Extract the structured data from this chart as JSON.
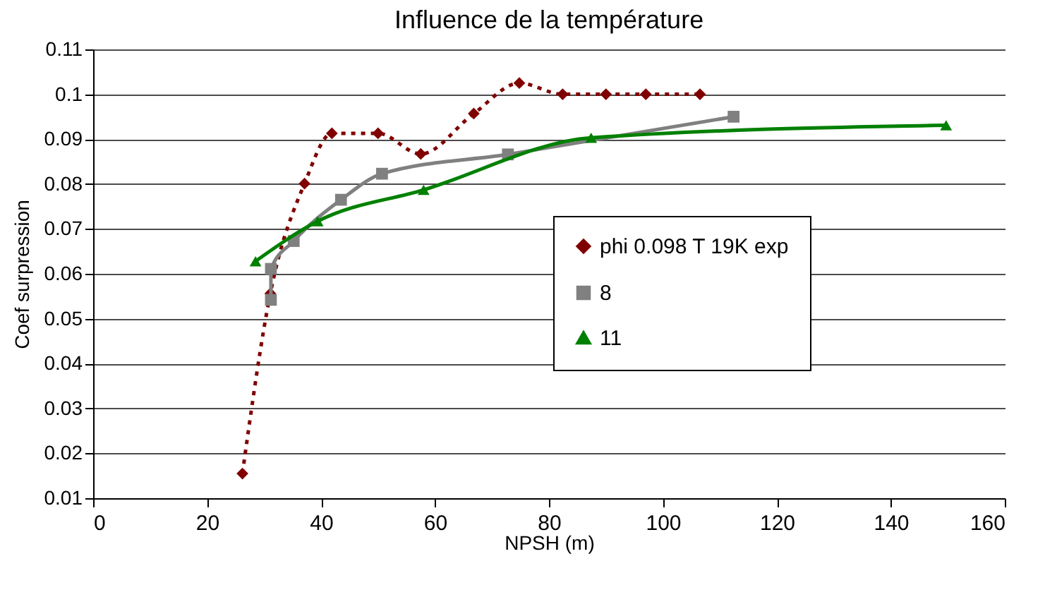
{
  "chart_data": {
    "type": "line",
    "title": "Influence de la température",
    "xlabel": "NPSH (m)",
    "ylabel": "Coef surpression",
    "xlim": [
      0,
      160
    ],
    "xticks": [
      0,
      20,
      40,
      60,
      80,
      100,
      120,
      140,
      160
    ],
    "ylim": [
      0.01,
      0.11
    ],
    "yticks": [
      0.01,
      0.02,
      0.03,
      0.04,
      0.05,
      0.06,
      0.07,
      0.08,
      0.09,
      0.1,
      0.11
    ],
    "grid": "y",
    "legend": "right",
    "series": [
      {
        "name": "phi 0.098 T 19K exp",
        "color": "#800000",
        "marker": "diamond",
        "line_style": "dotted",
        "x": [
          26.2,
          31.1,
          37.1,
          41.9,
          50.0,
          57.5,
          66.8,
          74.8,
          82.4,
          90.0,
          97.0,
          106.5
        ],
        "values": [
          0.0155,
          0.0556,
          0.0801,
          0.0913,
          0.0913,
          0.0867,
          0.0957,
          0.1025,
          0.1,
          0.1,
          0.1,
          0.1
        ]
      },
      {
        "name": "8",
        "color": "#808080",
        "marker": "square",
        "line_style": "solid",
        "x": [
          31.2,
          31.2,
          35.2,
          43.5,
          50.7,
          72.8,
          112.4
        ],
        "values": [
          0.0542,
          0.0611,
          0.0673,
          0.0765,
          0.0823,
          0.0866,
          0.095
        ]
      },
      {
        "name": "11",
        "color": "#008000",
        "marker": "triangle",
        "line_style": "solid",
        "x": [
          28.5,
          39.4,
          58.0,
          87.4,
          149.7
        ],
        "values": [
          0.0628,
          0.0717,
          0.0787,
          0.0903,
          0.0931
        ]
      }
    ]
  }
}
